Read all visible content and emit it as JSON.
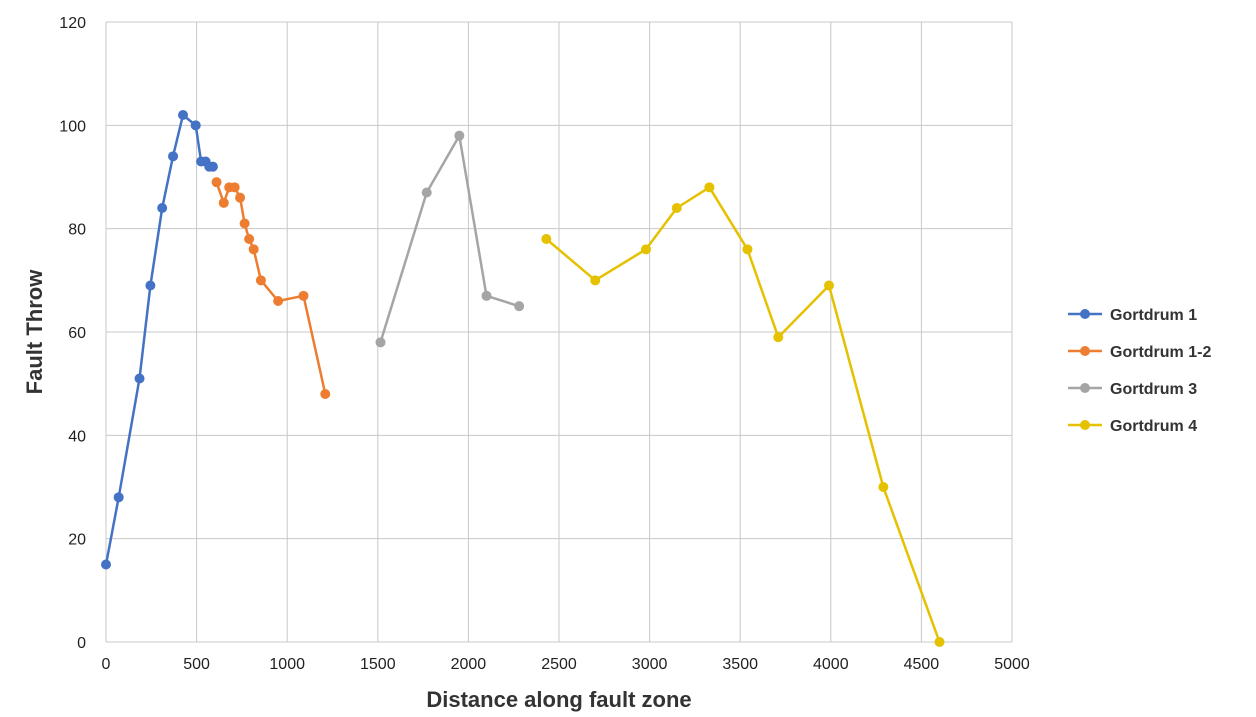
{
  "chart_data": {
    "type": "line",
    "title": "",
    "xlabel": "Distance along fault zone",
    "ylabel": "Fault Throw",
    "xlim": [
      0,
      5000
    ],
    "ylim": [
      0,
      120
    ],
    "x_ticks": [
      "0",
      "500",
      "1000",
      "1500",
      "2000",
      "2500",
      "3000",
      "3500",
      "4000",
      "4500",
      "5000"
    ],
    "y_ticks": [
      "0",
      "20",
      "40",
      "60",
      "80",
      "100",
      "120"
    ],
    "grid": true,
    "legend_position": "right",
    "series": [
      {
        "name": "Gortdrum 1",
        "color": "#4472C4",
        "points": [
          [
            0,
            15
          ],
          [
            70,
            28
          ],
          [
            185,
            51
          ],
          [
            245,
            69
          ],
          [
            310,
            84
          ],
          [
            370,
            94
          ],
          [
            425,
            102
          ],
          [
            495,
            100
          ],
          [
            525,
            93
          ],
          [
            550,
            93
          ],
          [
            570,
            92
          ],
          [
            590,
            92
          ]
        ]
      },
      {
        "name": "Gortdrum 1-2",
        "color": "#ED7D31",
        "points": [
          [
            610,
            89
          ],
          [
            650,
            85
          ],
          [
            680,
            88
          ],
          [
            710,
            88
          ],
          [
            740,
            86
          ],
          [
            765,
            81
          ],
          [
            790,
            78
          ],
          [
            815,
            76
          ],
          [
            855,
            70
          ],
          [
            950,
            66
          ],
          [
            1090,
            67
          ],
          [
            1210,
            48
          ]
        ]
      },
      {
        "name": "Gortdrum 3",
        "color": "#A5A5A5",
        "points": [
          [
            1515,
            58
          ],
          [
            1770,
            87
          ],
          [
            1950,
            98
          ],
          [
            2100,
            67
          ],
          [
            2280,
            65
          ]
        ]
      },
      {
        "name": "Gortdrum 4",
        "color": "#E5C100",
        "points": [
          [
            2430,
            78
          ],
          [
            2700,
            70
          ],
          [
            2980,
            76
          ],
          [
            3150,
            84
          ],
          [
            3330,
            88
          ],
          [
            3540,
            76
          ],
          [
            3710,
            59
          ],
          [
            3990,
            69
          ],
          [
            4290,
            30
          ],
          [
            4600,
            0
          ]
        ]
      }
    ]
  }
}
